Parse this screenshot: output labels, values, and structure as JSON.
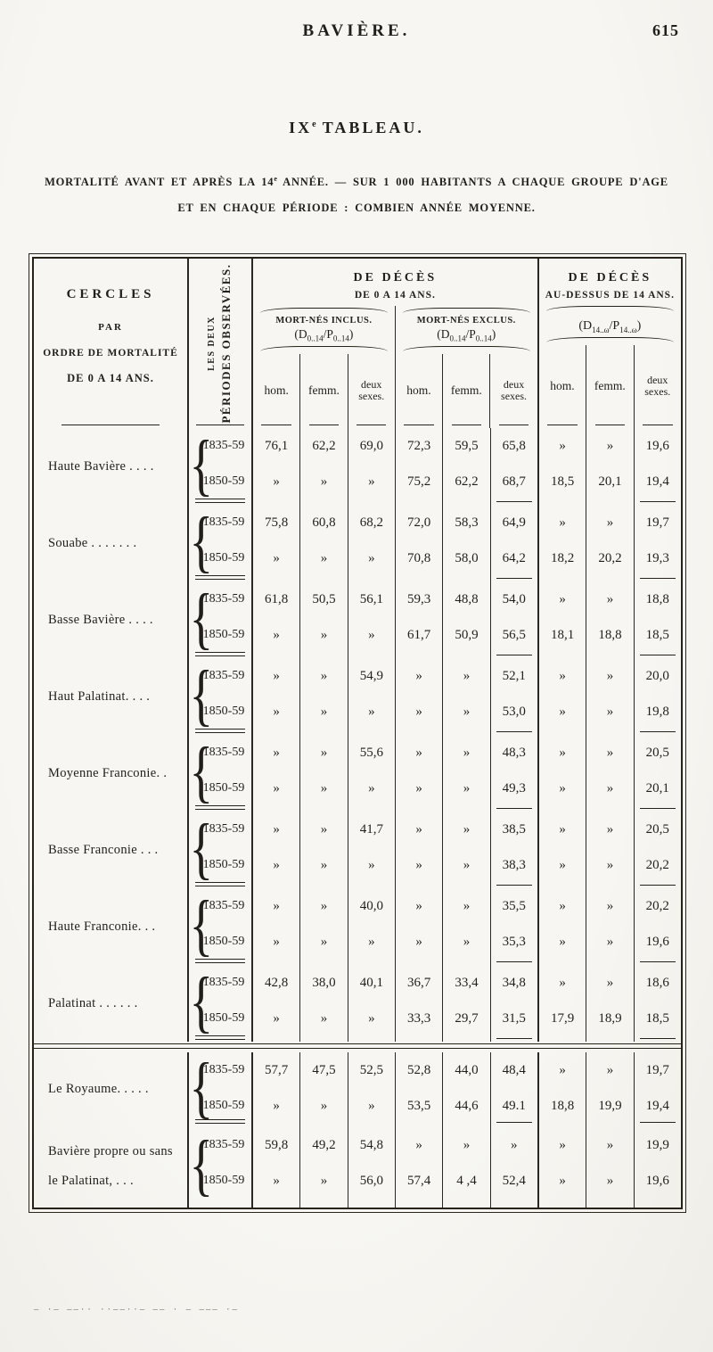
{
  "page": {
    "header_title": "BAVIÈRE.",
    "page_number": "615",
    "title_pre": "IX",
    "title_sup": "e",
    "title_post": " TABLEAU.",
    "subtitle_1a": "MORTALITÉ AVANT ET APRÈS LA 14",
    "subtitle_1sup": "e",
    "subtitle_1b": " ANNÉE. — SUR 1 000 HABITANTS A CHAQUE GROUPE D'AGE",
    "subtitle_2": "ET EN CHAQUE PÉRIODE : COMBIEN ANNÉE MOYENNE.",
    "noise_marks": "– ·– ––·· ··––··– –– · – ––– ·–"
  },
  "table": {
    "brace": "{",
    "cercles_header": {
      "line1": "CERCLES",
      "line2": "PAR",
      "line3": "ORDRE DE MORTALITÉ",
      "line4": "DE 0 A 14 ANS."
    },
    "periodes_header": {
      "small": "LES DEUX",
      "large": "PÉRIODES OBSERVÉES."
    },
    "group_0_14": {
      "title_line1": "DE DÉCÈS",
      "title_line2": "DE 0 A 14 ANS.",
      "incl": {
        "label": "MORT-NÉS INCLUS.",
        "formula": {
          "pre": "(D",
          "sub1": "0..14",
          "mid": "/P",
          "sub2": "0..14",
          "post": ")"
        }
      },
      "excl": {
        "label": "MORT-NÉS EXCLUS.",
        "formula": {
          "pre": "(D",
          "sub1": "0..14",
          "mid": "/P",
          "sub2": "0..14",
          "post": ")"
        }
      }
    },
    "group_14": {
      "title_line1": "DE DÉCÈS",
      "title_line2": "AU-DESSUS DE 14 ANS.",
      "formula": {
        "pre": "(D",
        "sub1": "14..ω",
        "mid": "/P",
        "sub2": "14..ω",
        "post": ")"
      }
    },
    "subcol_labels": {
      "hom": "hom.",
      "femm": "femm.",
      "deux": "deux sexes."
    }
  },
  "sections": [
    {
      "name1": "Haute Bavière . . . .",
      "name2": "",
      "rows": [
        {
          "period": "1835-59",
          "values": [
            "76,1",
            "62,2",
            "69,0",
            "72,3",
            "59,5",
            "65,8",
            "»",
            "»",
            "19,6"
          ]
        },
        {
          "period": "1850-59",
          "values": [
            "»",
            "»",
            "»",
            "75,2",
            "62,2",
            "68,7",
            "18,5",
            "20,1",
            "19,4"
          ]
        }
      ]
    },
    {
      "name1": "Souabe . . . . . . .",
      "name2": "",
      "rows": [
        {
          "period": "1835-59",
          "values": [
            "75,8",
            "60,8",
            "68,2",
            "72,0",
            "58,3",
            "64,9",
            "»",
            "»",
            "19,7"
          ]
        },
        {
          "period": "1850-59",
          "values": [
            "»",
            "»",
            "»",
            "70,8",
            "58,0",
            "64,2",
            "18,2",
            "20,2",
            "19,3"
          ]
        }
      ]
    },
    {
      "name1": "Basse Bavière . . . .",
      "name2": "",
      "rows": [
        {
          "period": "1835-59",
          "values": [
            "61,8",
            "50,5",
            "56,1",
            "59,3",
            "48,8",
            "54,0",
            "»",
            "»",
            "18,8"
          ]
        },
        {
          "period": "1850-59",
          "values": [
            "»",
            "»",
            "»",
            "61,7",
            "50,9",
            "56,5",
            "18,1",
            "18,8",
            "18,5"
          ]
        }
      ]
    },
    {
      "name1": "Haut Palatinat. . . .",
      "name2": "",
      "rows": [
        {
          "period": "1835-59",
          "values": [
            "»",
            "»",
            "54,9",
            "»",
            "»",
            "52,1",
            "»",
            "»",
            "20,0"
          ]
        },
        {
          "period": "1850-59",
          "values": [
            "»",
            "»",
            "»",
            "»",
            "»",
            "53,0",
            "»",
            "»",
            "19,8"
          ]
        }
      ]
    },
    {
      "name1": "Moyenne Franconie. .",
      "name2": "",
      "rows": [
        {
          "period": "1835-59",
          "values": [
            "»",
            "»",
            "55,6",
            "»",
            "»",
            "48,3",
            "»",
            "»",
            "20,5"
          ]
        },
        {
          "period": "1850-59",
          "values": [
            "»",
            "»",
            "»",
            "»",
            "»",
            "49,3",
            "»",
            "»",
            "20,1"
          ]
        }
      ]
    },
    {
      "name1": "Basse Franconie . . .",
      "name2": "",
      "rows": [
        {
          "period": "1835-59",
          "values": [
            "»",
            "»",
            "41,7",
            "»",
            "»",
            "38,5",
            "»",
            "»",
            "20,5"
          ]
        },
        {
          "period": "1850-59",
          "values": [
            "»",
            "»",
            "»",
            "»",
            "»",
            "38,3",
            "»",
            "»",
            "20,2"
          ]
        }
      ]
    },
    {
      "name1": "Haute Franconie. . .",
      "name2": "",
      "rows": [
        {
          "period": "1835-59",
          "values": [
            "»",
            "»",
            "40,0",
            "»",
            "»",
            "35,5",
            "»",
            "»",
            "20,2"
          ]
        },
        {
          "period": "1850-59",
          "values": [
            "»",
            "»",
            "»",
            "»",
            "»",
            "35,3",
            "»",
            "»",
            "19,6"
          ]
        }
      ]
    },
    {
      "name1": "Palatinat . . . . . .",
      "name2": "",
      "rows": [
        {
          "period": "1835-59",
          "values": [
            "42,8",
            "38,0",
            "40,1",
            "36,7",
            "33,4",
            "34,8",
            "»",
            "»",
            "18,6"
          ]
        },
        {
          "period": "1850-59",
          "values": [
            "»",
            "»",
            "»",
            "33,3",
            "29,7",
            "31,5",
            "17,9",
            "18,9",
            "18,5"
          ]
        }
      ]
    },
    {
      "name1": "Le Royaume. . . . .",
      "name2": "",
      "rows": [
        {
          "period": "1835-59",
          "values": [
            "57,7",
            "47,5",
            "52,5",
            "52,8",
            "44,0",
            "48,4",
            "»",
            "»",
            "19,7"
          ]
        },
        {
          "period": "1850-59",
          "values": [
            "»",
            "»",
            "»",
            "53,5",
            "44,6",
            "49.1",
            "18,8",
            "19,9",
            "19,4"
          ]
        }
      ]
    },
    {
      "name1": "Bavière propre ou sans",
      "name2": "le Palatinat, . . .",
      "rows": [
        {
          "period": "1835-59",
          "values": [
            "59,8",
            "49,2",
            "54,8",
            "»",
            "»",
            "»",
            "»",
            "»",
            "19,9"
          ]
        },
        {
          "period": "1850-59",
          "values": [
            "»",
            "»",
            "56,0",
            "57,4",
            "4 ,4",
            "52,4",
            "»",
            "»",
            "19,6"
          ]
        }
      ]
    }
  ]
}
